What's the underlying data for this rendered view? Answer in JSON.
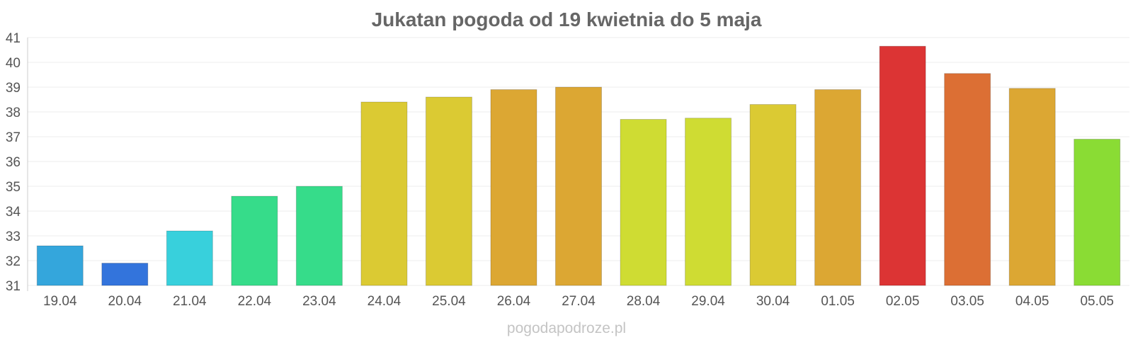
{
  "chart_data": {
    "type": "bar",
    "title": "Jukatan pogoda od 19 kwietnia do 5 maja",
    "xlabel": "",
    "ylabel": "",
    "categories": [
      "19.04",
      "20.04",
      "21.04",
      "22.04",
      "23.04",
      "24.04",
      "25.04",
      "26.04",
      "27.04",
      "28.04",
      "29.04",
      "30.04",
      "01.05",
      "02.05",
      "03.05",
      "04.05",
      "05.05"
    ],
    "values": [
      32.6,
      31.9,
      33.2,
      34.6,
      35.0,
      38.4,
      38.6,
      38.9,
      39.0,
      37.7,
      37.75,
      38.3,
      38.9,
      40.65,
      39.55,
      38.95,
      36.9
    ],
    "colors": [
      "#34a6dc",
      "#3374dc",
      "#38d0dc",
      "#36dc8a",
      "#36dc8a",
      "#dbca33",
      "#dbca33",
      "#dca733",
      "#dca733",
      "#cfdc33",
      "#cfdc33",
      "#dbca33",
      "#dca733",
      "#dc3434",
      "#dc6f34",
      "#dca733",
      "#8adc34"
    ],
    "ylim": [
      31,
      41
    ],
    "yticks": [
      "31",
      "32",
      "33",
      "34",
      "35",
      "36",
      "37",
      "38",
      "39",
      "40",
      "41"
    ],
    "grid": true,
    "legend": "none"
  },
  "footer": "pogodapodroze.pl"
}
